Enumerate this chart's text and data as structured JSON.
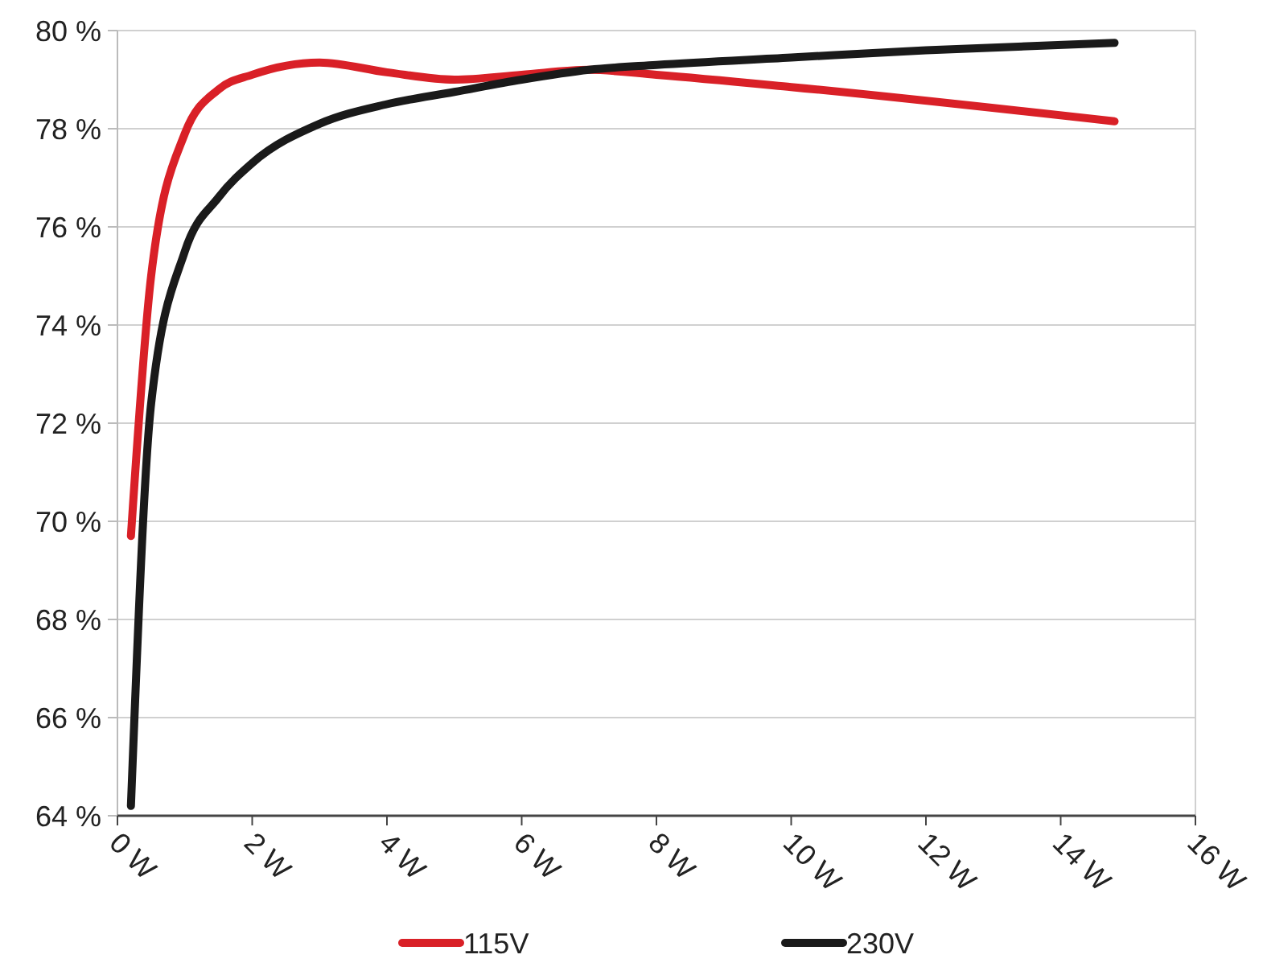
{
  "chart_data": {
    "type": "line",
    "xlim": [
      0,
      16
    ],
    "xticks": [
      {
        "value": 0,
        "label": "0 W"
      },
      {
        "value": 2,
        "label": "2 W"
      },
      {
        "value": 4,
        "label": "4 W"
      },
      {
        "value": 6,
        "label": "6 W"
      },
      {
        "value": 8,
        "label": "8 W"
      },
      {
        "value": 10,
        "label": "10 W"
      },
      {
        "value": 12,
        "label": "12 W"
      },
      {
        "value": 14,
        "label": "14 W"
      },
      {
        "value": 16,
        "label": "16 W"
      }
    ],
    "ylim": [
      64,
      80
    ],
    "yticks": [
      {
        "value": 64,
        "label": "64 %"
      },
      {
        "value": 66,
        "label": "66 %"
      },
      {
        "value": 68,
        "label": "68 %"
      },
      {
        "value": 70,
        "label": "70 %"
      },
      {
        "value": 72,
        "label": "72 %"
      },
      {
        "value": 74,
        "label": "74 %"
      },
      {
        "value": 76,
        "label": "76 %"
      },
      {
        "value": 78,
        "label": "78 %"
      },
      {
        "value": 80,
        "label": "80 %"
      }
    ],
    "grid": "y",
    "legend": "bottom",
    "marker": "none",
    "line_style": "solid",
    "series": [
      {
        "name": "115V",
        "color": "#d92027",
        "x": [
          0.2,
          0.5,
          1,
          1.5,
          2,
          3,
          4,
          5,
          6,
          7,
          8,
          10,
          14.8
        ],
        "values": [
          69.7,
          75.0,
          77.9,
          78.8,
          79.1,
          79.35,
          79.15,
          79.0,
          79.1,
          79.2,
          79.1,
          78.85,
          78.15
        ]
      },
      {
        "name": "230V",
        "color": "#1a1a1a",
        "x": [
          0.2,
          0.5,
          1,
          1.5,
          2,
          3,
          4,
          5,
          6,
          7,
          8,
          10,
          12,
          14.8
        ],
        "values": [
          64.2,
          72.4,
          75.5,
          76.6,
          77.3,
          78.1,
          78.5,
          78.75,
          79.0,
          79.2,
          79.3,
          79.45,
          79.6,
          79.75
        ]
      }
    ]
  }
}
